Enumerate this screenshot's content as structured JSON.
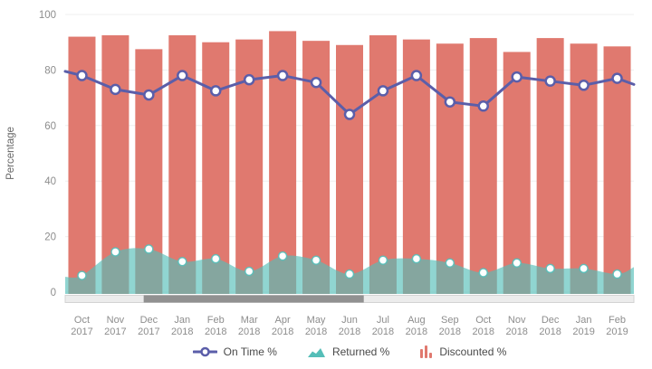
{
  "chart_data": {
    "type": "combo: bar + line + area with data-zoom scrollbar",
    "title": "",
    "xlabel": "",
    "ylabel": "Percentage",
    "ylim": [
      0,
      100
    ],
    "yticks": [
      0,
      20,
      40,
      60,
      80,
      100
    ],
    "grid": true,
    "legend_position": "bottom",
    "categories": [
      "Oct 2017",
      "Nov 2017",
      "Dec 2017",
      "Jan 2018",
      "Feb 2018",
      "Mar 2018",
      "Apr 2018",
      "May 2018",
      "Jun 2018",
      "Jul 2018",
      "Aug 2018",
      "Sep 2018",
      "Oct 2018",
      "Nov 2018",
      "Dec 2018",
      "Jan 2019",
      "Feb 2019"
    ],
    "series": [
      {
        "name": "On Time %",
        "type": "line",
        "color": "#5B5EA9",
        "values": [
          78,
          73,
          71,
          78,
          72.5,
          76.5,
          78,
          75.5,
          64,
          72.5,
          78,
          68.5,
          67,
          77.5,
          76,
          74.5,
          77
        ],
        "edge_left": 79.5,
        "edge_right": 74.8
      },
      {
        "name": "Returned %",
        "type": "area",
        "color": "#55BEB8",
        "opacity": 0.65,
        "values": [
          6,
          14.5,
          15.5,
          11,
          12,
          7.5,
          13,
          11.5,
          6.5,
          11.5,
          12,
          10.5,
          7,
          10.5,
          8.5,
          8.5,
          6.5
        ],
        "edge_left": 5.5,
        "edge_right": 9
      },
      {
        "name": "Discounted %",
        "type": "bar",
        "color": "#E0796F",
        "values": [
          92,
          92.5,
          87.5,
          92.5,
          90,
          91,
          94,
          90.5,
          89,
          92.5,
          91,
          89.5,
          91.5,
          86.5,
          91.5,
          89.5,
          88.5
        ]
      }
    ],
    "scroll": {
      "start_frac": 0.138,
      "end_frac": 0.525
    }
  },
  "colors": {
    "grid": "#EFEFEF",
    "axis_text": "#8D8D8D",
    "scroll_track": "#ECECEC",
    "scroll_track_border": "#D3D3D3",
    "scroll_thumb": "#919191",
    "legend_text": "#4A4A4A"
  }
}
